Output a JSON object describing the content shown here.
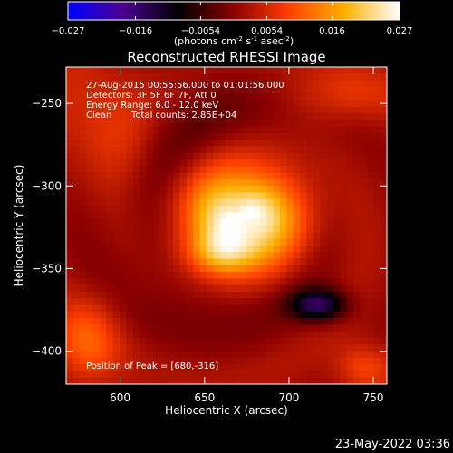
{
  "chart_data": {
    "type": "heatmap",
    "title": "Reconstructed RHESSI Image",
    "xlabel": "Heliocentric X (arcsec)",
    "ylabel": "Heliocentric Y (arcsec)",
    "xlim": [
      568,
      758
    ],
    "ylim": [
      -420,
      -228
    ],
    "x_ticks": [
      600,
      650,
      700,
      750
    ],
    "y_ticks": [
      -250,
      -300,
      -350,
      -400
    ],
    "colorbar": {
      "range": [
        -0.027,
        0.027
      ],
      "tick_labels": [
        "-0.027",
        "-0.016",
        "-0.0054",
        "0.0054",
        "0.016",
        "0.027"
      ],
      "unit_label": "(photons cm-2 s-1 asec-2)",
      "colors": [
        "#0000ff",
        "#4b0090",
        "#000000",
        "#8b0000",
        "#ff4000",
        "#ffb000",
        "#ffffff"
      ]
    },
    "annotations": {
      "time_range": "27-Aug-2015 00:55:56.000 to 01:01:56.000",
      "detectors": "Detectors: 3F 5F 6F 7F, Att 0",
      "energy": "Energy Range: 6.0 - 12.0 keV",
      "method": "Clean",
      "total_counts": "Total counts: 2.85E+04",
      "peak": "Position of Peak = [680,-316]"
    },
    "peak": {
      "x": 680,
      "y": -316,
      "value": 0.027
    },
    "features": [
      {
        "kind": "source",
        "x": 672,
        "y": -318,
        "sx": 26,
        "sy": 22,
        "amp": 1.0
      },
      {
        "kind": "source",
        "x": 660,
        "y": -340,
        "sx": 14,
        "sy": 10,
        "amp": 0.45
      },
      {
        "kind": "source",
        "x": 580,
        "y": -395,
        "sx": 14,
        "sy": 18,
        "amp": 0.35
      },
      {
        "kind": "source",
        "x": 745,
        "y": -410,
        "sx": 12,
        "sy": 10,
        "amp": 0.3
      },
      {
        "kind": "source",
        "x": 730,
        "y": -245,
        "sx": 26,
        "sy": 12,
        "amp": 0.2
      },
      {
        "kind": "source",
        "x": 590,
        "y": -260,
        "sx": 22,
        "sy": 30,
        "amp": 0.25
      },
      {
        "kind": "negative",
        "x": 718,
        "y": -372,
        "sx": 12,
        "sy": 7,
        "amp": -0.6
      },
      {
        "kind": "negative",
        "x": 640,
        "y": -300,
        "sx": 40,
        "sy": 60,
        "amp": -0.12
      }
    ]
  },
  "footer": {
    "date": "23-May-2022 03:36"
  }
}
